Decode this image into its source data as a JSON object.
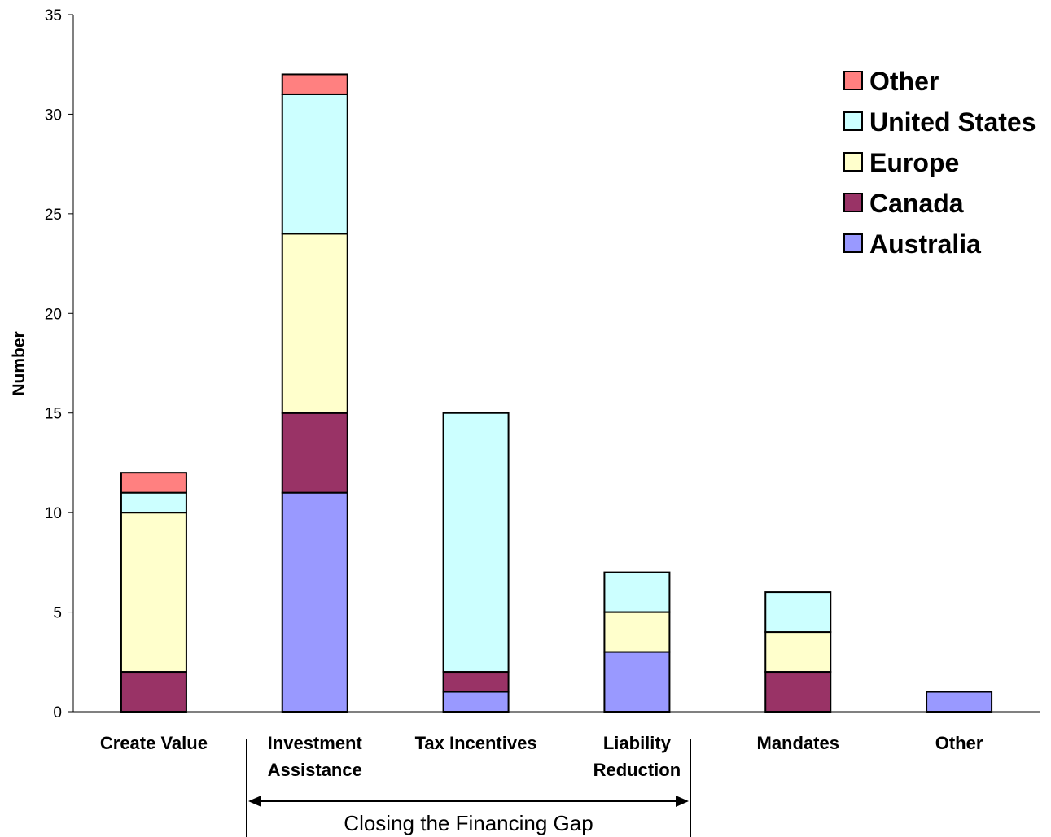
{
  "chart_data": {
    "type": "bar",
    "stacked": true,
    "categories": [
      [
        "Create Value"
      ],
      [
        "Investment",
        "Assistance"
      ],
      [
        "Tax Incentives"
      ],
      [
        "Liability",
        "Reduction"
      ],
      [
        "Mandates"
      ],
      [
        "Other"
      ]
    ],
    "series": [
      {
        "name": "Australia",
        "color": "#9999ff",
        "values": [
          0,
          11,
          1,
          3,
          0,
          1
        ]
      },
      {
        "name": "Canada",
        "color": "#993366",
        "values": [
          2,
          4,
          1,
          0,
          2,
          0
        ]
      },
      {
        "name": "Europe",
        "color": "#ffffcc",
        "values": [
          8,
          9,
          0,
          2,
          2,
          0
        ]
      },
      {
        "name": "United States",
        "color": "#ccffff",
        "values": [
          1,
          7,
          13,
          2,
          2,
          0
        ]
      },
      {
        "name": "Other",
        "color": "#ff8080",
        "values": [
          1,
          1,
          0,
          0,
          0,
          0
        ]
      }
    ],
    "ylabel": "Number",
    "ylim": [
      0,
      35
    ],
    "yticks": [
      0,
      5,
      10,
      15,
      20,
      25,
      30,
      35
    ],
    "grid": false,
    "legend_position": "top-right",
    "legend_order": [
      "Other",
      "United States",
      "Europe",
      "Canada",
      "Australia"
    ],
    "annotation": {
      "text": "Closing the Financing Gap",
      "spans": [
        "Investment Assistance",
        "Tax Incentives",
        "Liability Reduction"
      ]
    }
  }
}
